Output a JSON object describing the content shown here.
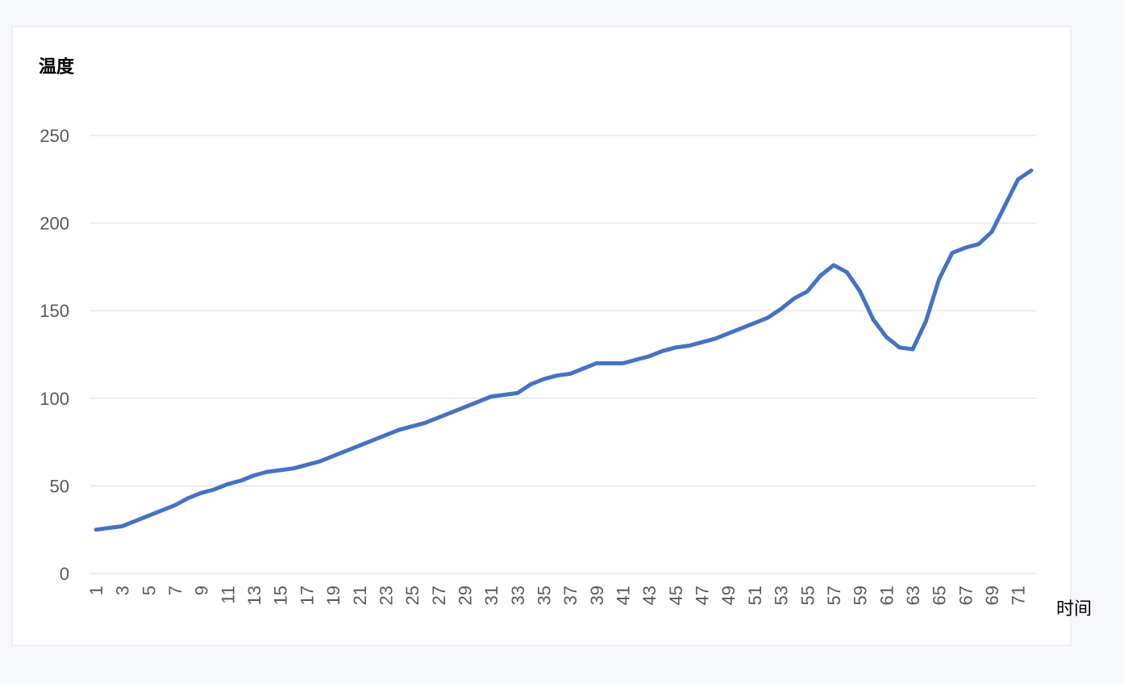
{
  "chart_data": {
    "type": "line",
    "y_label": "温度",
    "x_label": "时间",
    "categories": [
      "1",
      null,
      "3",
      null,
      "5",
      null,
      "7",
      null,
      "9",
      null,
      "11",
      null,
      "13",
      null,
      "15",
      null,
      "17",
      null,
      "19",
      null,
      "21",
      null,
      "23",
      null,
      "25",
      null,
      "27",
      null,
      "29",
      null,
      "31",
      null,
      "33",
      null,
      "35",
      null,
      "37",
      null,
      "39",
      null,
      "41",
      null,
      "43",
      null,
      "45",
      null,
      "47",
      null,
      "49",
      null,
      "51",
      null,
      "53",
      null,
      "55",
      null,
      "57",
      null,
      "59",
      null,
      "61",
      null,
      "63",
      null,
      "65",
      null,
      "67",
      null,
      "69",
      null,
      "71",
      null
    ],
    "values": [
      25,
      26,
      27,
      30,
      33,
      36,
      39,
      43,
      46,
      48,
      51,
      53,
      56,
      58,
      59,
      60,
      62,
      64,
      67,
      70,
      73,
      76,
      79,
      82,
      84,
      86,
      89,
      92,
      95,
      98,
      101,
      102,
      103,
      108,
      111,
      113,
      114,
      117,
      120,
      120,
      120,
      122,
      124,
      127,
      129,
      130,
      132,
      134,
      137,
      140,
      143,
      146,
      151,
      157,
      161,
      170,
      176,
      172,
      161,
      145,
      135,
      129,
      128,
      144,
      168,
      183,
      186,
      188,
      195,
      210,
      225,
      230
    ],
    "color": "#4472c4",
    "ylim": [
      0,
      250
    ],
    "yticks": [
      0,
      50,
      100,
      150,
      200,
      250
    ],
    "grid": true
  }
}
